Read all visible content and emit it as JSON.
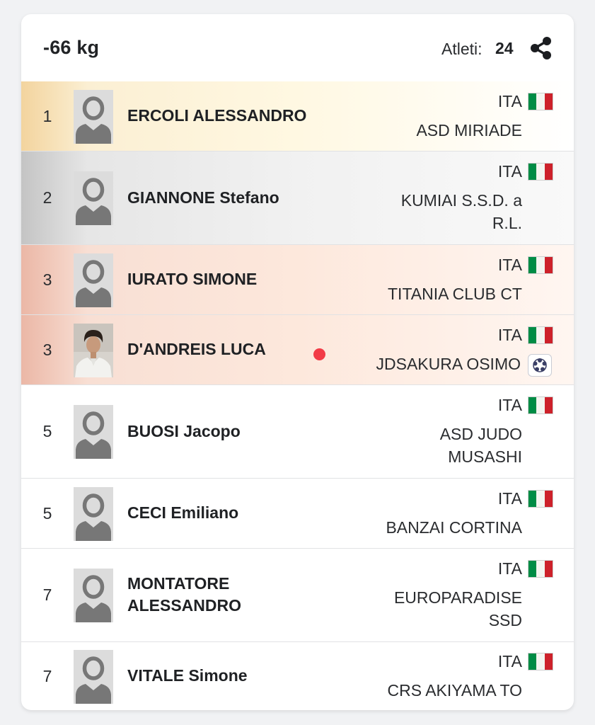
{
  "category": {
    "title": "-66 kg"
  },
  "athletes": {
    "label": "Atleti:",
    "count": "24"
  },
  "icons": {
    "share": "share-icon",
    "flag": "italy-flag-icon",
    "avatar": "person-placeholder-icon",
    "club_logo": "club-logo-icon",
    "live": "live-dot"
  },
  "colors": {
    "flag_green": "#008c45",
    "flag_white": "#f4f5f0",
    "flag_red": "#cd212a",
    "live_dot": "#f23b46"
  },
  "results": [
    {
      "rank": "1",
      "name": "ERCOLI ALESSANDRO",
      "nation": "ITA",
      "club": "ASD MIRIADE",
      "medal": "gold"
    },
    {
      "rank": "2",
      "name": "GIANNONE Stefano",
      "nation": "ITA",
      "club": "KUMIAI S.S.D. a R.L.",
      "medal": "silver"
    },
    {
      "rank": "3",
      "name": "IURATO SIMONE",
      "nation": "ITA",
      "club": "TITANIA CLUB CT",
      "medal": "bronze"
    },
    {
      "rank": "3",
      "name": "D'ANDREIS LUCA",
      "nation": "ITA",
      "club": "JDSAKURA OSIMO",
      "medal": "bronze"
    },
    {
      "rank": "5",
      "name": "BUOSI Jacopo",
      "nation": "ITA",
      "club": "ASD JUDO MUSASHI",
      "medal": "none"
    },
    {
      "rank": "5",
      "name": "CECI Emiliano",
      "nation": "ITA",
      "club": "BANZAI CORTINA",
      "medal": "none"
    },
    {
      "rank": "7",
      "name": "MONTATORE ALESSANDRO",
      "nation": "ITA",
      "club": "EUROPARADISE SSD",
      "medal": "none"
    },
    {
      "rank": "7",
      "name": "VITALE Simone",
      "nation": "ITA",
      "club": "CRS AKIYAMA TO",
      "medal": "none"
    }
  ]
}
